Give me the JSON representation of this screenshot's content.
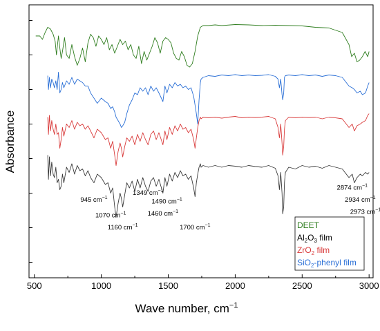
{
  "chart_data": {
    "type": "line",
    "title": "",
    "xlabel": "Wave number, cm",
    "xlabel_superscript": "−1",
    "ylabel": "Absorbance",
    "xlim": [
      460,
      3030
    ],
    "x_ticks": [
      500,
      1000,
      1500,
      2000,
      2500,
      3000
    ],
    "y_ticks_labeled": false,
    "grid": false,
    "legend_position": "bottom-right",
    "series": [
      {
        "name": "DEET",
        "color": "#2e7d1e",
        "x": [
          510,
          540,
          560,
          580,
          600,
          620,
          640,
          655,
          665,
          680,
          690,
          700,
          710,
          725,
          740,
          760,
          780,
          800,
          820,
          840,
          860,
          880,
          900,
          920,
          940,
          960,
          980,
          1000,
          1020,
          1040,
          1060,
          1080,
          1100,
          1120,
          1140,
          1160,
          1180,
          1200,
          1220,
          1240,
          1260,
          1280,
          1300,
          1320,
          1340,
          1360,
          1380,
          1400,
          1420,
          1440,
          1460,
          1480,
          1500,
          1520,
          1540,
          1560,
          1580,
          1600,
          1620,
          1640,
          1660,
          1680,
          1700,
          1720,
          1740,
          1760,
          1800,
          1850,
          1900,
          2000,
          2100,
          2200,
          2300,
          2400,
          2500,
          2600,
          2700,
          2800,
          2850,
          2870,
          2890,
          2910,
          2930,
          2950,
          2970,
          2990,
          3000
        ],
        "values": [
          7.55,
          7.55,
          7.45,
          7.65,
          7.8,
          7.75,
          7.6,
          7.4,
          7.0,
          7.55,
          7.2,
          6.9,
          7.1,
          7.5,
          7.0,
          6.9,
          7.3,
          6.95,
          6.7,
          6.9,
          7.2,
          6.8,
          7.35,
          7.6,
          7.5,
          7.25,
          7.55,
          7.45,
          7.3,
          7.5,
          7.15,
          7.3,
          7.05,
          7.25,
          7.45,
          7.3,
          7.4,
          7.15,
          7.3,
          7.0,
          6.9,
          7.25,
          6.75,
          7.1,
          6.85,
          7.05,
          7.25,
          7.5,
          7.35,
          7.05,
          7.4,
          7.5,
          7.45,
          7.35,
          7.05,
          6.9,
          6.85,
          7.1,
          6.95,
          6.7,
          6.65,
          6.75,
          7.1,
          7.55,
          7.8,
          7.85,
          7.85,
          7.87,
          7.85,
          7.88,
          7.87,
          7.85,
          7.86,
          7.85,
          7.84,
          7.8,
          7.78,
          7.65,
          7.3,
          6.95,
          7.05,
          6.8,
          6.85,
          6.95,
          7.1,
          6.95,
          7.1
        ]
      },
      {
        "name": "Al2O3 film",
        "color": "#3a3a3a",
        "x": [
          600,
          605,
          612,
          620,
          630,
          640,
          650,
          660,
          670,
          680,
          690,
          700,
          710,
          720,
          740,
          760,
          780,
          800,
          820,
          840,
          860,
          880,
          900,
          920,
          945,
          970,
          1000,
          1030,
          1050,
          1070,
          1085,
          1100,
          1110,
          1125,
          1140,
          1150,
          1160,
          1175,
          1190,
          1210,
          1230,
          1250,
          1270,
          1290,
          1310,
          1330,
          1349,
          1370,
          1390,
          1410,
          1430,
          1460,
          1475,
          1490,
          1510,
          1530,
          1550,
          1570,
          1590,
          1610,
          1630,
          1650,
          1670,
          1690,
          1700,
          1710,
          1720,
          1730,
          1740,
          1745,
          1760,
          1800,
          1850,
          1900,
          1950,
          2000,
          2050,
          2100,
          2150,
          2200,
          2250,
          2300,
          2320,
          2330,
          2340,
          2350,
          2355,
          2362,
          2368,
          2375,
          2400,
          2450,
          2500,
          2550,
          2600,
          2650,
          2700,
          2750,
          2800,
          2850,
          2874,
          2890,
          2910,
          2934,
          2950,
          2973,
          2990,
          3000
        ],
        "values": [
          4.1,
          3.4,
          4.05,
          3.5,
          3.9,
          3.55,
          3.45,
          3.75,
          3.3,
          3.4,
          3.1,
          3.2,
          3.55,
          3.3,
          3.75,
          3.6,
          3.85,
          3.55,
          3.8,
          3.65,
          3.7,
          3.5,
          3.65,
          3.45,
          3.3,
          3.55,
          3.45,
          3.25,
          3.3,
          3.0,
          3.15,
          2.6,
          2.3,
          2.7,
          3.0,
          2.85,
          2.6,
          2.95,
          3.3,
          3.15,
          3.35,
          3.05,
          3.4,
          3.15,
          3.45,
          3.2,
          3.05,
          3.35,
          3.45,
          3.2,
          3.4,
          3.0,
          3.45,
          3.2,
          3.55,
          3.35,
          3.6,
          3.45,
          3.65,
          3.5,
          3.55,
          3.4,
          3.5,
          3.15,
          2.9,
          3.3,
          3.55,
          3.75,
          3.85,
          3.75,
          3.8,
          3.75,
          3.8,
          3.75,
          3.8,
          3.78,
          3.75,
          3.8,
          3.77,
          3.75,
          3.8,
          3.72,
          3.5,
          3.1,
          3.6,
          3.0,
          2.4,
          2.6,
          3.3,
          3.6,
          3.75,
          3.7,
          3.8,
          3.75,
          3.78,
          3.72,
          3.8,
          3.75,
          3.7,
          3.45,
          3.55,
          3.3,
          3.45,
          3.55,
          3.5,
          3.6,
          3.55,
          3.6
        ]
      },
      {
        "name": "ZrO2 film",
        "color": "#d93b3b",
        "x": [
          600,
          605,
          612,
          620,
          630,
          640,
          650,
          660,
          670,
          680,
          690,
          700,
          710,
          720,
          740,
          760,
          780,
          800,
          820,
          840,
          860,
          880,
          900,
          920,
          945,
          970,
          1000,
          1030,
          1050,
          1070,
          1085,
          1100,
          1110,
          1125,
          1140,
          1150,
          1160,
          1175,
          1190,
          1210,
          1230,
          1250,
          1270,
          1290,
          1310,
          1330,
          1349,
          1370,
          1390,
          1410,
          1430,
          1460,
          1475,
          1490,
          1510,
          1530,
          1550,
          1570,
          1590,
          1610,
          1630,
          1650,
          1670,
          1690,
          1700,
          1710,
          1720,
          1730,
          1740,
          1745,
          1760,
          1800,
          1850,
          1900,
          1950,
          2000,
          2050,
          2100,
          2150,
          2200,
          2250,
          2300,
          2320,
          2330,
          2340,
          2350,
          2355,
          2362,
          2368,
          2375,
          2400,
          2450,
          2500,
          2550,
          2600,
          2650,
          2700,
          2750,
          2800,
          2850,
          2874,
          2890,
          2910,
          2934,
          2950,
          2973,
          2990,
          3000
        ],
        "values": [
          5.2,
          4.7,
          5.25,
          4.8,
          5.1,
          4.85,
          4.7,
          5.0,
          4.7,
          4.75,
          4.3,
          4.55,
          4.9,
          4.65,
          5.0,
          4.9,
          5.1,
          4.85,
          5.05,
          4.95,
          5.0,
          4.85,
          4.95,
          4.8,
          4.6,
          4.85,
          4.75,
          4.55,
          4.6,
          4.3,
          4.5,
          4.1,
          3.8,
          4.2,
          4.45,
          4.3,
          4.05,
          4.35,
          4.6,
          4.5,
          4.65,
          4.4,
          4.7,
          4.5,
          4.75,
          4.55,
          4.4,
          4.7,
          4.8,
          4.55,
          4.75,
          4.4,
          4.8,
          4.55,
          4.9,
          4.7,
          4.95,
          4.8,
          5.0,
          4.85,
          4.9,
          4.75,
          4.85,
          4.55,
          4.3,
          4.6,
          4.9,
          5.1,
          5.2,
          5.15,
          5.2,
          5.18,
          5.2,
          5.17,
          5.2,
          5.22,
          5.18,
          5.2,
          5.19,
          5.2,
          5.22,
          5.15,
          4.9,
          4.6,
          5.0,
          4.45,
          4.1,
          4.35,
          4.85,
          5.1,
          5.2,
          5.18,
          5.2,
          5.19,
          5.2,
          5.15,
          5.2,
          5.18,
          5.15,
          4.9,
          5.0,
          4.8,
          4.95,
          5.0,
          5.05,
          5.1,
          5.25,
          5.3
        ]
      },
      {
        "name": "SiO2-phenyl film",
        "color": "#2a6fd6",
        "x": [
          600,
          605,
          612,
          620,
          630,
          640,
          650,
          660,
          670,
          680,
          690,
          700,
          710,
          720,
          740,
          760,
          780,
          800,
          820,
          840,
          860,
          880,
          900,
          920,
          945,
          970,
          1000,
          1030,
          1050,
          1070,
          1085,
          1100,
          1110,
          1125,
          1140,
          1150,
          1160,
          1175,
          1190,
          1210,
          1230,
          1250,
          1270,
          1290,
          1310,
          1330,
          1349,
          1370,
          1390,
          1410,
          1430,
          1460,
          1475,
          1490,
          1510,
          1530,
          1550,
          1570,
          1590,
          1610,
          1630,
          1650,
          1670,
          1690,
          1700,
          1710,
          1720,
          1730,
          1740,
          1745,
          1760,
          1800,
          1850,
          1900,
          1950,
          2000,
          2050,
          2100,
          2150,
          2200,
          2250,
          2300,
          2320,
          2330,
          2340,
          2350,
          2355,
          2362,
          2368,
          2375,
          2400,
          2450,
          2500,
          2550,
          2600,
          2650,
          2700,
          2750,
          2800,
          2850,
          2874,
          2890,
          2910,
          2934,
          2950,
          2973,
          2990,
          3000
        ],
        "values": [
          6.4,
          6.0,
          6.35,
          6.05,
          6.3,
          6.2,
          6.05,
          6.25,
          6.0,
          6.5,
          5.9,
          6.0,
          6.2,
          6.05,
          6.25,
          6.15,
          6.35,
          6.15,
          6.3,
          6.25,
          6.2,
          6.1,
          6.1,
          5.9,
          5.75,
          5.6,
          5.75,
          5.65,
          5.6,
          5.45,
          5.5,
          5.35,
          5.2,
          5.1,
          5.0,
          4.9,
          4.95,
          5.05,
          5.3,
          5.55,
          5.7,
          5.9,
          5.85,
          6.05,
          5.95,
          6.05,
          5.85,
          6.1,
          5.95,
          6.05,
          5.9,
          5.65,
          6.1,
          5.9,
          6.15,
          6.05,
          6.2,
          6.1,
          6.15,
          6.05,
          6.1,
          6.0,
          6.05,
          5.8,
          5.55,
          5.3,
          5.0,
          5.7,
          6.2,
          6.3,
          6.35,
          6.4,
          6.38,
          6.42,
          6.4,
          6.43,
          6.4,
          6.42,
          6.4,
          6.41,
          6.43,
          6.38,
          6.3,
          6.05,
          6.3,
          5.85,
          5.7,
          5.9,
          6.35,
          6.4,
          6.42,
          6.4,
          6.43,
          6.4,
          6.42,
          6.38,
          6.42,
          6.4,
          6.35,
          6.1,
          6.05,
          6.0,
          5.9,
          5.95,
          5.85,
          5.9,
          6.1,
          6.2
        ]
      }
    ],
    "annotations": [
      {
        "label": "945 cm",
        "sup": "−1",
        "x": 945,
        "y": 2.75
      },
      {
        "label": "1070 cm",
        "sup": "−1",
        "x": 1070,
        "y": 2.3
      },
      {
        "label": "1349 cm",
        "sup": "−1",
        "x": 1349,
        "y": 2.95
      },
      {
        "label": "1460 cm",
        "sup": "−1",
        "x": 1460,
        "y": 2.35
      },
      {
        "label": "1490 cm",
        "sup": "−1",
        "x": 1490,
        "y": 2.7
      },
      {
        "label": "1160 cm",
        "sup": "−1",
        "x": 1160,
        "y": 1.95
      },
      {
        "label": "1700 cm",
        "sup": "−1",
        "x": 1700,
        "y": 1.95
      },
      {
        "label": "2874 cm",
        "sup": "−1",
        "x": 2874,
        "y": 3.1
      },
      {
        "label": "2934 cm",
        "sup": "−1",
        "x": 2934,
        "y": 2.75
      },
      {
        "label": "2973 cm",
        "sup": "−1",
        "x": 2973,
        "y": 2.4
      }
    ]
  },
  "legend": {
    "items": [
      {
        "text": "DEET",
        "color": "#2e7d1e"
      },
      {
        "text": "Al",
        "sub1": "2",
        "mid": "O",
        "sub2": "3",
        "tail": " film",
        "color": "#000000"
      },
      {
        "text": "ZrO",
        "sub1": "2",
        "tail": " film",
        "color": "#d93b3b"
      },
      {
        "text": "SiO",
        "sub1": "2",
        "tail": "-phenyl film",
        "color": "#2a6fd6"
      }
    ]
  }
}
